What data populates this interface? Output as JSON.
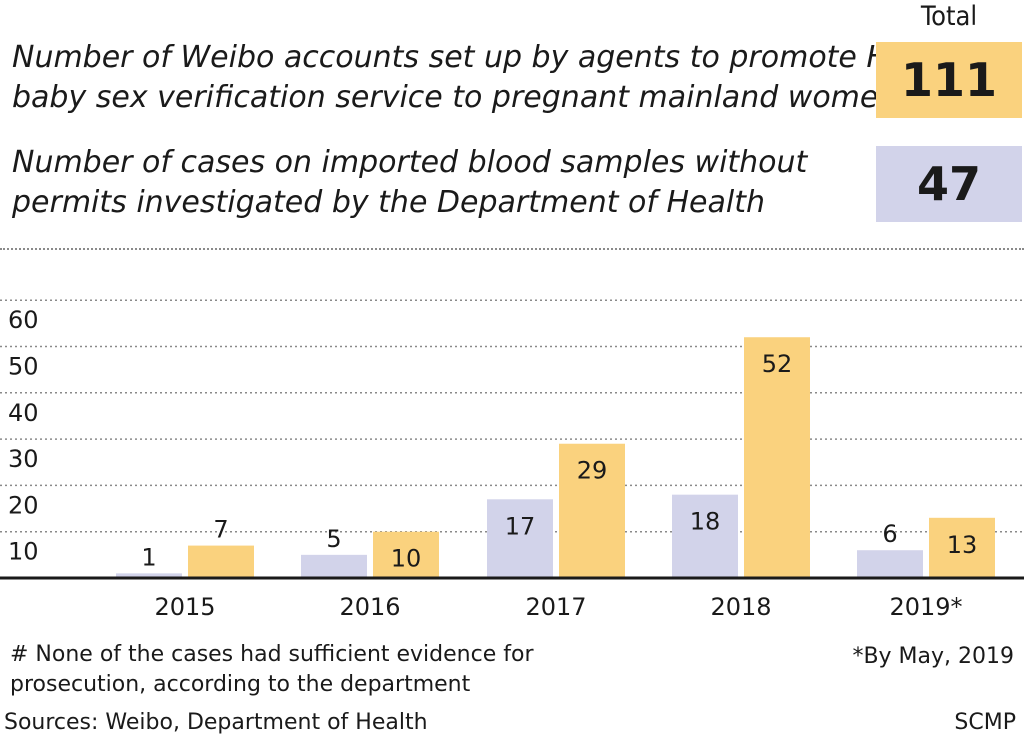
{
  "header": {
    "total_label": "Total",
    "legend": [
      {
        "line1": "Number of Weibo accounts set up by agents to promote HK's",
        "line2": "baby sex verification service to pregnant mainland women",
        "total": "111",
        "color": "#fad27e"
      },
      {
        "line1": "Number of cases on imported blood samples without",
        "line2": "permits investigated by the Department of Health",
        "total": "47",
        "color": "#d2d3ea"
      }
    ]
  },
  "chart_data": {
    "type": "bar",
    "categories": [
      "2015",
      "2016",
      "2017",
      "2018",
      "2019*"
    ],
    "series": [
      {
        "values": [
          1,
          5,
          17,
          18,
          6
        ],
        "color": "#d2d3ea"
      },
      {
        "values": [
          7,
          10,
          29,
          52,
          13
        ],
        "color": "#fad27e"
      }
    ],
    "ylim": [
      0,
      60
    ],
    "yticks": [
      10,
      20,
      30,
      40,
      50,
      60
    ],
    "grid": true
  },
  "footer": {
    "note_line1": "# None of the cases had sufficient evidence for",
    "note_line2": "prosecution, according to the department",
    "date_note": "*By May, 2019",
    "sources": "Sources: Weibo, Department of Health",
    "brand": "SCMP"
  }
}
